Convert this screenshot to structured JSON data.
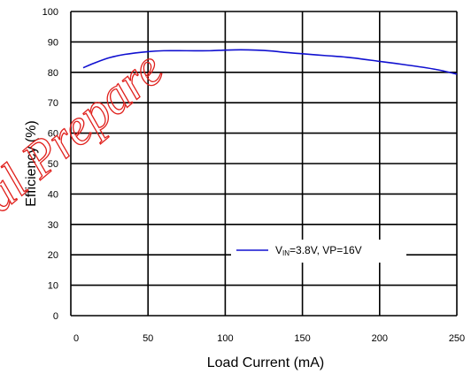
{
  "chart_data": {
    "type": "line",
    "xlabel": "Load Current (mA)",
    "ylabel": "Efficiency (%)",
    "xlim": [
      0,
      250
    ],
    "ylim": [
      0,
      100
    ],
    "x_ticks": [
      "0",
      "50",
      "100",
      "150",
      "200",
      "250"
    ],
    "y_ticks": [
      "0",
      "10",
      "20",
      "30",
      "40",
      "50",
      "60",
      "70",
      "80",
      "90",
      "100"
    ],
    "grid": true,
    "legend_position": "bottom-right",
    "series": [
      {
        "name": "VIN=3.8V, VP=16V",
        "legend": {
          "main": "V",
          "sub": "IN",
          "rest": "=3.8V, VP=16V"
        },
        "color": "#1010d0",
        "x": [
          8,
          15,
          25,
          35,
          50,
          60,
          75,
          90,
          100,
          110,
          120,
          130,
          140,
          150,
          165,
          180,
          200,
          215,
          230,
          240,
          250
        ],
        "y": [
          81.5,
          83,
          84.8,
          85.9,
          86.8,
          87.1,
          87.1,
          87.1,
          87.3,
          87.4,
          87.3,
          87.0,
          86.5,
          86.1,
          85.5,
          84.9,
          83.6,
          82.6,
          81.5,
          80.6,
          79.4
        ]
      }
    ]
  },
  "watermark": {
    "text": "al Prepare",
    "color": "#e0201c"
  }
}
